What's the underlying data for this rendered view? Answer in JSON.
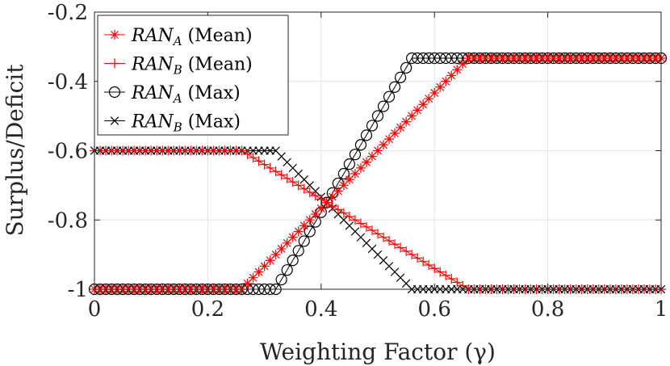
{
  "chart_data": {
    "type": "line",
    "title": "",
    "xlabel": "Weighting Factor (γ)",
    "ylabel": "Surplus/Deficit",
    "xlim": [
      0,
      1
    ],
    "ylim": [
      -1,
      -0.2
    ],
    "y_axis_direction": "reversed",
    "xticks": [
      0,
      0.2,
      0.4,
      0.6,
      0.8,
      1
    ],
    "xtick_labels": [
      "0",
      "0.2",
      "0.4",
      "0.6",
      "0.8",
      "1"
    ],
    "yticks": [
      -0.2,
      -0.4,
      -0.6,
      -0.8,
      -1
    ],
    "ytick_labels": [
      "-0.2",
      "-0.4",
      "-0.6",
      "-0.8",
      "-1"
    ],
    "grid": true,
    "legend_position": "top-left",
    "x_sample_step": 0.01,
    "series": [
      {
        "name": "RAN_A (Mean)",
        "label_base": "RAN",
        "label_sub": "A",
        "label_suffix": "(Mean)",
        "color": "#ff0000",
        "marker": "asterisk",
        "breakpoints": [
          [
            0,
            -1
          ],
          [
            0.26,
            -1
          ],
          [
            0.66,
            -0.333
          ],
          [
            1,
            -0.333
          ]
        ]
      },
      {
        "name": "RAN_B (Mean)",
        "label_base": "RAN",
        "label_sub": "B",
        "label_suffix": "(Mean)",
        "color": "#ff0000",
        "marker": "plus",
        "breakpoints": [
          [
            0,
            -0.6
          ],
          [
            0.26,
            -0.6
          ],
          [
            0.66,
            -1
          ],
          [
            1,
            -1
          ]
        ]
      },
      {
        "name": "RAN_A (Max)",
        "label_base": "RAN",
        "label_sub": "A",
        "label_suffix": "(Max)",
        "color": "#000000",
        "marker": "circle",
        "breakpoints": [
          [
            0,
            -1
          ],
          [
            0.32,
            -1
          ],
          [
            0.56,
            -0.333
          ],
          [
            1,
            -0.333
          ]
        ]
      },
      {
        "name": "RAN_B (Max)",
        "label_base": "RAN",
        "label_sub": "B",
        "label_suffix": "(Max)",
        "color": "#000000",
        "marker": "cross",
        "breakpoints": [
          [
            0,
            -0.6
          ],
          [
            0.32,
            -0.6
          ],
          [
            0.56,
            -1
          ],
          [
            1,
            -1
          ]
        ]
      }
    ]
  }
}
